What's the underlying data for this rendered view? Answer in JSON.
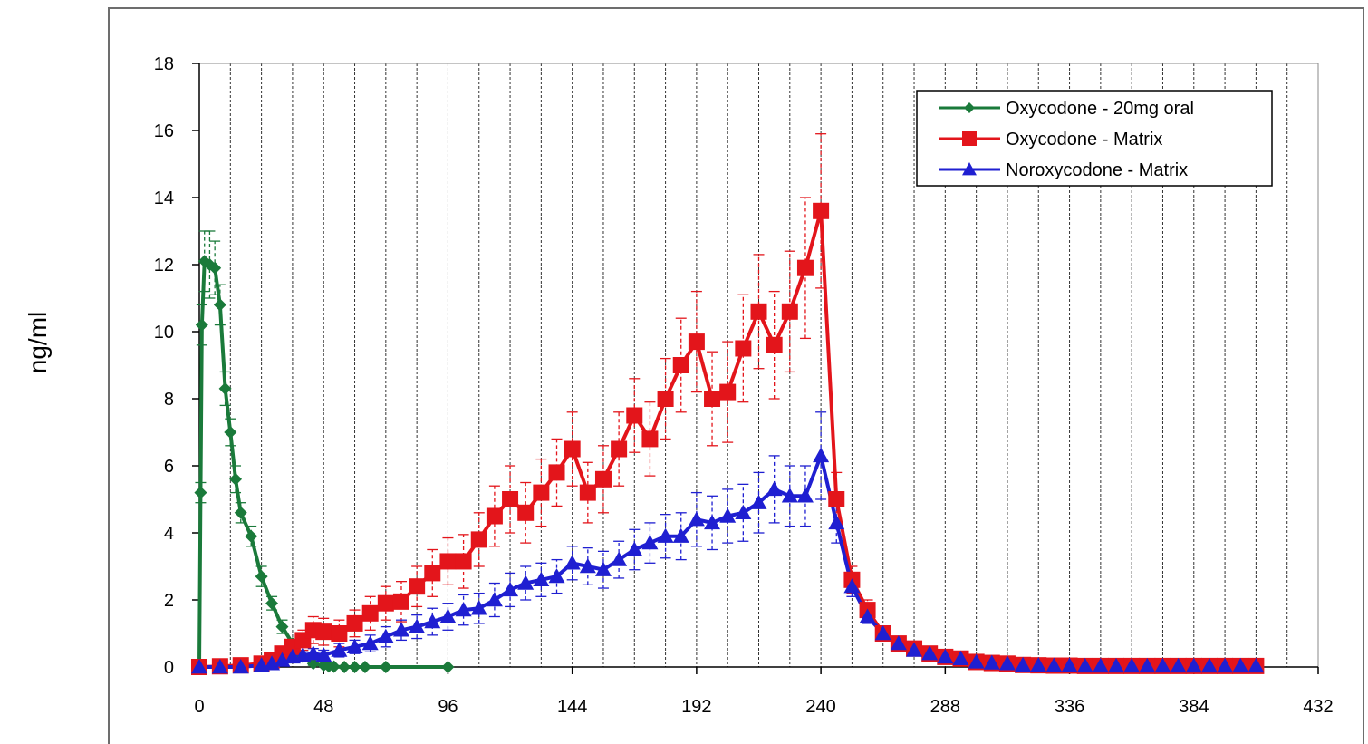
{
  "chart_data": {
    "type": "line",
    "title": "",
    "xlabel": "",
    "ylabel": "ng/ml",
    "xlim": [
      0,
      432
    ],
    "ylim": [
      0,
      18
    ],
    "xticks": [
      0,
      48,
      96,
      144,
      192,
      240,
      288,
      336,
      384,
      432
    ],
    "yticks": [
      0,
      2,
      4,
      6,
      8,
      10,
      12,
      14,
      16,
      18
    ],
    "grid": "vertical dashed",
    "legend_position": "top-right",
    "series": [
      {
        "name": "Oxycodone - 20mg oral",
        "color": "#1a7a3a",
        "marker": "diamond",
        "x": [
          0,
          0.5,
          1,
          2,
          4,
          6,
          8,
          10,
          12,
          14,
          16,
          20,
          24,
          28,
          32,
          36,
          40,
          44,
          48,
          50,
          52,
          56,
          60,
          64,
          72,
          96
        ],
        "y": [
          0,
          5.2,
          10.2,
          12.1,
          12.0,
          11.9,
          10.8,
          8.3,
          7.0,
          5.6,
          4.6,
          3.9,
          2.7,
          1.9,
          1.2,
          0.7,
          0.3,
          0.1,
          0.05,
          0.02,
          0.01,
          0,
          0,
          0,
          0,
          0
        ],
        "error": [
          0,
          0.3,
          0.6,
          0.9,
          1.0,
          0.8,
          0.6,
          0.5,
          0.4,
          0.4,
          0.3,
          0.3,
          0.3,
          0.2,
          0.2,
          0.1,
          0.1,
          0.05,
          0,
          0,
          0,
          0,
          0,
          0,
          0,
          0
        ]
      },
      {
        "name": "Oxycodone - Matrix",
        "color": "#e3151b",
        "marker": "square",
        "x": [
          0,
          8,
          16,
          24,
          28,
          32,
          36,
          40,
          44,
          48,
          54,
          60,
          66,
          72,
          78,
          84,
          90,
          96,
          102,
          108,
          114,
          120,
          126,
          132,
          138,
          144,
          150,
          156,
          162,
          168,
          174,
          180,
          186,
          192,
          198,
          204,
          210,
          216,
          222,
          228,
          234,
          240,
          246,
          252,
          258,
          264,
          270,
          276,
          282,
          288,
          294,
          300,
          306,
          312,
          318,
          324,
          330,
          336,
          342,
          348,
          354,
          360,
          366,
          372,
          378,
          384,
          390,
          396,
          402,
          408
        ],
        "y": [
          0,
          0.02,
          0.05,
          0.1,
          0.2,
          0.4,
          0.6,
          0.8,
          1.1,
          1.05,
          1.0,
          1.3,
          1.6,
          1.9,
          1.95,
          2.4,
          2.8,
          3.15,
          3.15,
          3.8,
          4.5,
          5.0,
          4.6,
          5.2,
          5.8,
          6.5,
          5.2,
          5.6,
          6.5,
          7.5,
          6.8,
          8.0,
          9.0,
          9.7,
          8.0,
          8.2,
          9.5,
          10.6,
          9.6,
          10.6,
          11.9,
          13.6,
          5.0,
          2.6,
          1.7,
          1.0,
          0.7,
          0.55,
          0.4,
          0.3,
          0.25,
          0.15,
          0.12,
          0.1,
          0.06,
          0.05,
          0.04,
          0.04,
          0.03,
          0.03,
          0.03,
          0.03,
          0.03,
          0.03,
          0.03,
          0.03,
          0.03,
          0.03,
          0.03,
          0.03
        ],
        "error": [
          0,
          0,
          0,
          0.05,
          0.1,
          0.15,
          0.2,
          0.3,
          0.4,
          0.4,
          0.4,
          0.4,
          0.5,
          0.5,
          0.6,
          0.6,
          0.7,
          0.7,
          0.8,
          0.8,
          0.9,
          1.0,
          0.9,
          1.0,
          1.0,
          1.1,
          0.9,
          1.0,
          1.1,
          1.1,
          1.1,
          1.2,
          1.4,
          1.5,
          1.4,
          1.5,
          1.6,
          1.7,
          1.6,
          1.8,
          2.1,
          2.3,
          0.8,
          0.4,
          0.3,
          0.2,
          0.15,
          0.1,
          0.1,
          0.05,
          0.05,
          0.05,
          0,
          0,
          0,
          0,
          0,
          0,
          0,
          0,
          0,
          0,
          0,
          0,
          0,
          0,
          0,
          0,
          0,
          0
        ]
      },
      {
        "name": "Noroxycodone - Matrix",
        "color": "#1f1fd1",
        "marker": "triangle",
        "x": [
          0,
          8,
          16,
          24,
          28,
          32,
          36,
          40,
          44,
          48,
          54,
          60,
          66,
          72,
          78,
          84,
          90,
          96,
          102,
          108,
          114,
          120,
          126,
          132,
          138,
          144,
          150,
          156,
          162,
          168,
          174,
          180,
          186,
          192,
          198,
          204,
          210,
          216,
          222,
          228,
          234,
          240,
          246,
          252,
          258,
          264,
          270,
          276,
          282,
          288,
          294,
          300,
          306,
          312,
          318,
          324,
          330,
          336,
          342,
          348,
          354,
          360,
          366,
          372,
          378,
          384,
          390,
          396,
          402,
          408
        ],
        "y": [
          0,
          0,
          0,
          0.05,
          0.1,
          0.2,
          0.3,
          0.35,
          0.4,
          0.35,
          0.5,
          0.6,
          0.7,
          0.9,
          1.1,
          1.2,
          1.35,
          1.5,
          1.7,
          1.75,
          2.0,
          2.3,
          2.5,
          2.6,
          2.7,
          3.1,
          3.0,
          2.9,
          3.2,
          3.5,
          3.7,
          3.9,
          3.9,
          4.4,
          4.3,
          4.5,
          4.6,
          4.9,
          5.3,
          5.1,
          5.1,
          6.3,
          4.3,
          2.4,
          1.5,
          1.0,
          0.7,
          0.5,
          0.4,
          0.3,
          0.25,
          0.15,
          0.12,
          0.1,
          0.06,
          0.05,
          0.04,
          0.04,
          0.03,
          0.03,
          0.03,
          0.03,
          0.03,
          0.03,
          0.03,
          0.03,
          0.03,
          0.03,
          0.03,
          0.03
        ],
        "error": [
          0,
          0,
          0,
          0,
          0.05,
          0.1,
          0.1,
          0.1,
          0.15,
          0.15,
          0.2,
          0.2,
          0.25,
          0.3,
          0.3,
          0.35,
          0.4,
          0.4,
          0.45,
          0.45,
          0.5,
          0.5,
          0.5,
          0.5,
          0.5,
          0.5,
          0.55,
          0.55,
          0.55,
          0.6,
          0.6,
          0.65,
          0.7,
          0.8,
          0.8,
          0.8,
          0.85,
          0.9,
          1.0,
          0.9,
          0.9,
          1.3,
          0.6,
          0.3,
          0.2,
          0.15,
          0.1,
          0.1,
          0.05,
          0.05,
          0.05,
          0,
          0,
          0,
          0,
          0,
          0,
          0,
          0,
          0,
          0,
          0,
          0,
          0,
          0,
          0,
          0,
          0,
          0,
          0
        ]
      }
    ]
  }
}
